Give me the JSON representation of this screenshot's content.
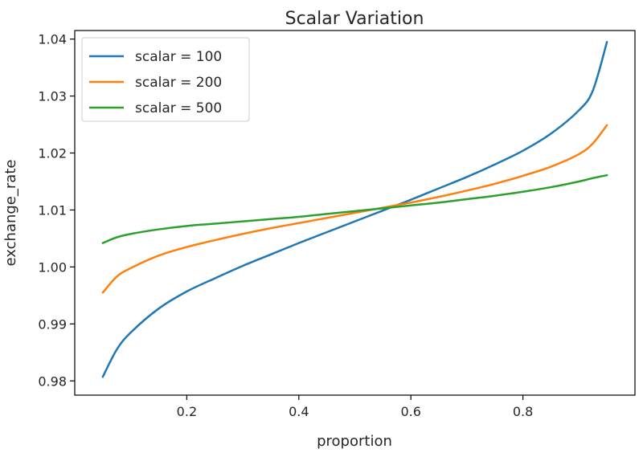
{
  "chart_data": {
    "type": "line",
    "title": "Scalar Variation",
    "xlabel": "proportion",
    "ylabel": "exchange_rate",
    "xlim": [
      0.0,
      1.0
    ],
    "ylim": [
      0.9775,
      1.0415
    ],
    "xticks": [
      0.2,
      0.4,
      0.6,
      0.8
    ],
    "xtick_labels": [
      "0.2",
      "0.4",
      "0.6",
      "0.8"
    ],
    "yticks": [
      0.98,
      0.99,
      1.0,
      1.01,
      1.02,
      1.03,
      1.04
    ],
    "ytick_labels": [
      "0.98",
      "0.99",
      "1.00",
      "1.01",
      "1.02",
      "1.03",
      "1.04"
    ],
    "grid": false,
    "legend_position": "top-left",
    "x": [
      0.05,
      0.075,
      0.1,
      0.15,
      0.2,
      0.25,
      0.3,
      0.35,
      0.4,
      0.45,
      0.5,
      0.55,
      0.6,
      0.65,
      0.7,
      0.75,
      0.8,
      0.85,
      0.9,
      0.925,
      0.95
    ],
    "series": [
      {
        "name": "scalar = 100",
        "color": "#1f77b4",
        "values": [
          0.9807,
          0.9855,
          0.9885,
          0.9927,
          0.9957,
          0.998,
          1.0002,
          1.0022,
          1.0042,
          1.0061,
          1.008,
          1.0099,
          1.0118,
          1.0138,
          1.0158,
          1.018,
          1.0204,
          1.0234,
          1.0275,
          1.031,
          1.0395
        ]
      },
      {
        "name": "scalar = 200",
        "color": "#ff7f0e",
        "values": [
          0.9955,
          0.9983,
          0.9998,
          1.002,
          1.0035,
          1.0047,
          1.0058,
          1.0068,
          1.0077,
          1.0086,
          1.0095,
          1.0104,
          1.0113,
          1.0123,
          1.0134,
          1.0146,
          1.016,
          1.0176,
          1.0198,
          1.0217,
          1.0249
        ]
      },
      {
        "name": "scalar = 500",
        "color": "#2ca02c",
        "values": [
          1.0042,
          1.0052,
          1.0058,
          1.0066,
          1.0072,
          1.0076,
          1.008,
          1.0084,
          1.0088,
          1.0093,
          1.0098,
          1.0103,
          1.0108,
          1.0113,
          1.0119,
          1.0125,
          1.0132,
          1.014,
          1.015,
          1.0156,
          1.0161
        ]
      }
    ]
  }
}
